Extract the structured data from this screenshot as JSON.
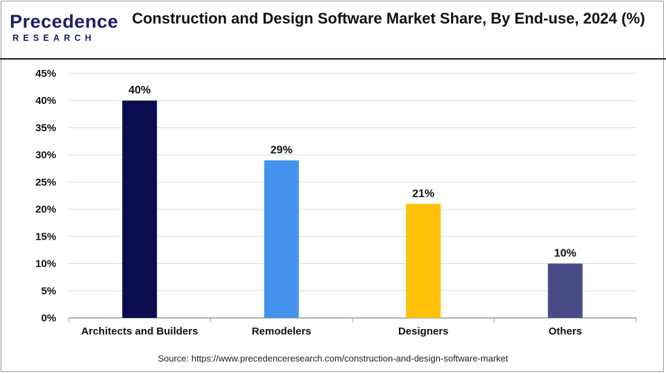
{
  "brand": {
    "logo_word": "Precedence",
    "logo_sub": "RESEARCH"
  },
  "colors": {
    "bar_colors": [
      "#0a0c4e",
      "#4693ef",
      "#ffc107",
      "#484b85"
    ],
    "grid": "#dcdcdc",
    "axis": "#9a9a9a",
    "brand": "#1a2060"
  },
  "chart_data": {
    "type": "bar",
    "title": "Construction and Design Software Market Share, By End-use, 2024 (%)",
    "categories": [
      "Architects and Builders",
      "Remodelers",
      "Designers",
      "Others"
    ],
    "values": [
      40,
      29,
      21,
      10
    ],
    "data_labels": [
      "40%",
      "29%",
      "21%",
      "10%"
    ],
    "xlabel": "",
    "ylabel": "",
    "ylim": [
      0,
      45
    ],
    "yticks": [
      0,
      5,
      10,
      15,
      20,
      25,
      30,
      35,
      40,
      45
    ],
    "ytick_labels": [
      "0%",
      "5%",
      "10%",
      "15%",
      "20%",
      "25%",
      "30%",
      "35%",
      "40%",
      "45%"
    ],
    "grid": true,
    "legend": "none"
  },
  "source": "Source: https://www.precedenceresearch.com/construction-and-design-software-market"
}
